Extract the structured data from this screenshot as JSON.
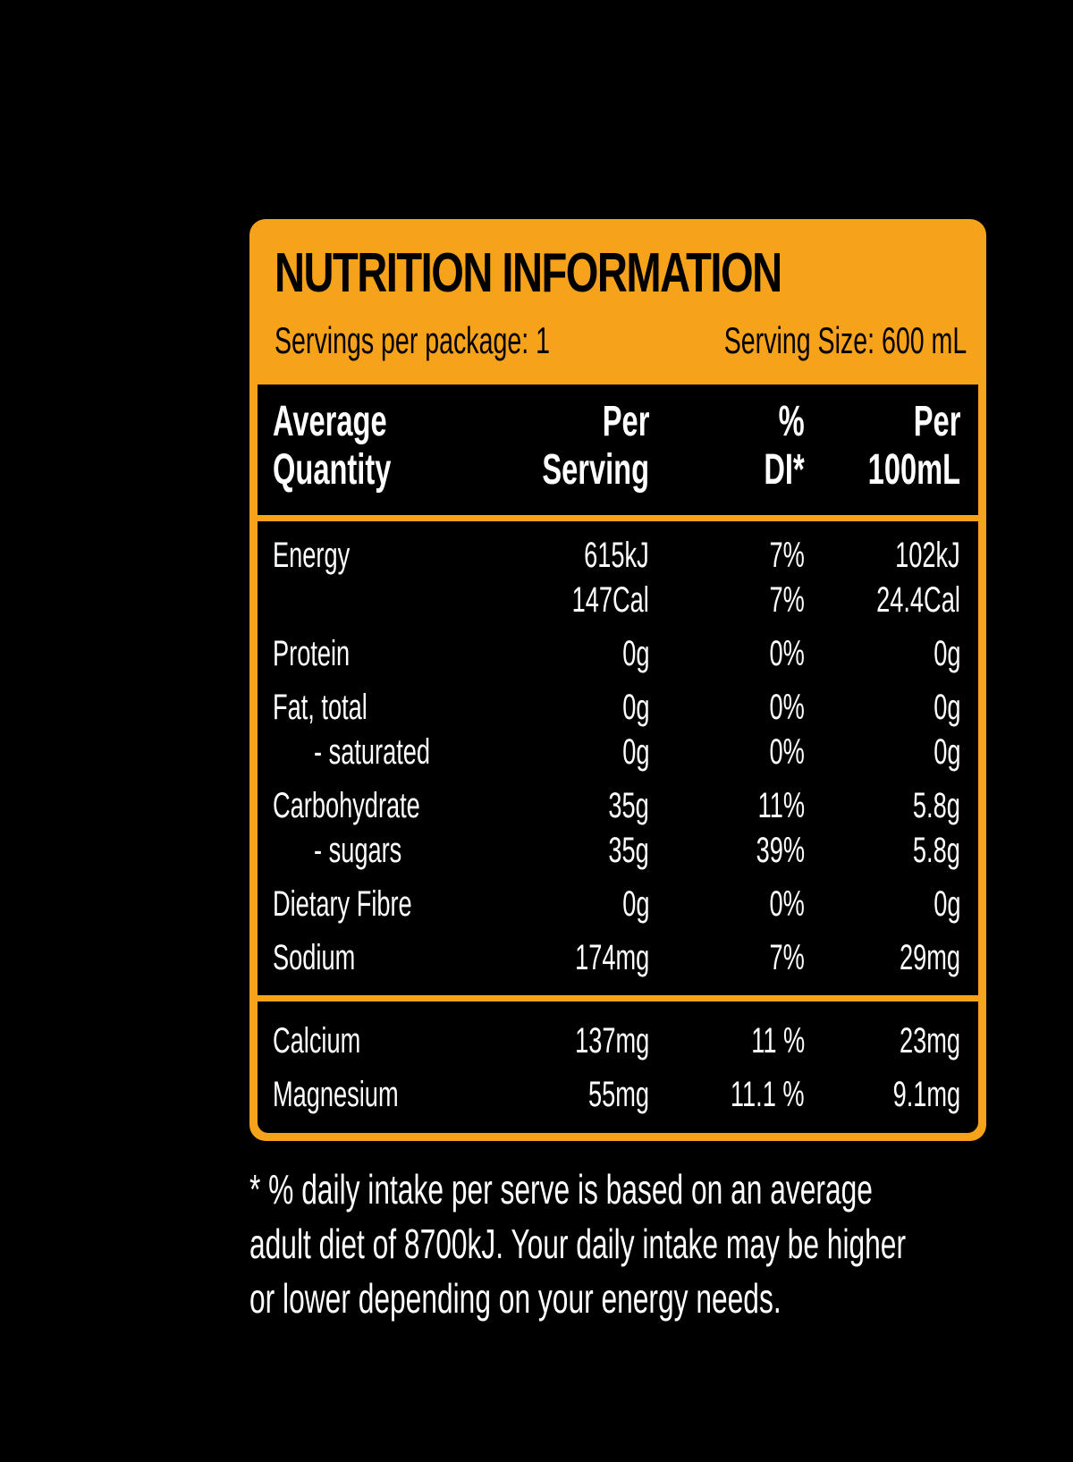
{
  "label": {
    "title": "NUTRITION INFORMATION",
    "servings_per_package": "Servings per package: 1",
    "serving_size": "Serving Size: 600 mL",
    "colors": {
      "accent": "#f7a21b",
      "background": "#000000",
      "text": "#ffffff"
    }
  },
  "table": {
    "headers": {
      "quantity": [
        "Average",
        "Quantity"
      ],
      "per_serving": [
        "Per",
        "Serving"
      ],
      "di": [
        "%",
        "DI*"
      ],
      "per_100ml": [
        "Per",
        "100mL"
      ]
    },
    "rows": [
      {
        "name": "Energy",
        "per_serving": "615kJ",
        "di": "7%",
        "per_100ml": "102kJ"
      },
      {
        "name": "",
        "per_serving": "147Cal",
        "di": "7%",
        "per_100ml": "24.4Cal"
      },
      {
        "name": "Protein",
        "per_serving": "0g",
        "di": "0%",
        "per_100ml": "0g"
      },
      {
        "name": "Fat, total",
        "per_serving": "0g",
        "di": "0%",
        "per_100ml": "0g"
      },
      {
        "name": "- saturated",
        "per_serving": "0g",
        "di": "0%",
        "per_100ml": "0g"
      },
      {
        "name": "Carbohydrate",
        "per_serving": "35g",
        "di": "11%",
        "per_100ml": "5.8g"
      },
      {
        "name": "- sugars",
        "per_serving": "35g",
        "di": "39%",
        "per_100ml": "5.8g"
      },
      {
        "name": "Dietary Fibre",
        "per_serving": "0g",
        "di": "0%",
        "per_100ml": "0g"
      },
      {
        "name": "Sodium",
        "per_serving": "174mg",
        "di": "7%",
        "per_100ml": "29mg"
      }
    ],
    "minerals": [
      {
        "name": "Calcium",
        "per_serving": "137mg",
        "di": "11 %",
        "per_100ml": "23mg"
      },
      {
        "name": "Magnesium",
        "per_serving": "55mg",
        "di": "11.1 %",
        "per_100ml": "9.1mg"
      }
    ]
  },
  "footnote": {
    "lines": [
      "* % daily intake per serve is based on an average",
      "adult diet of 8700kJ. Your daily intake may be higher",
      "or lower depending on your energy needs."
    ]
  }
}
